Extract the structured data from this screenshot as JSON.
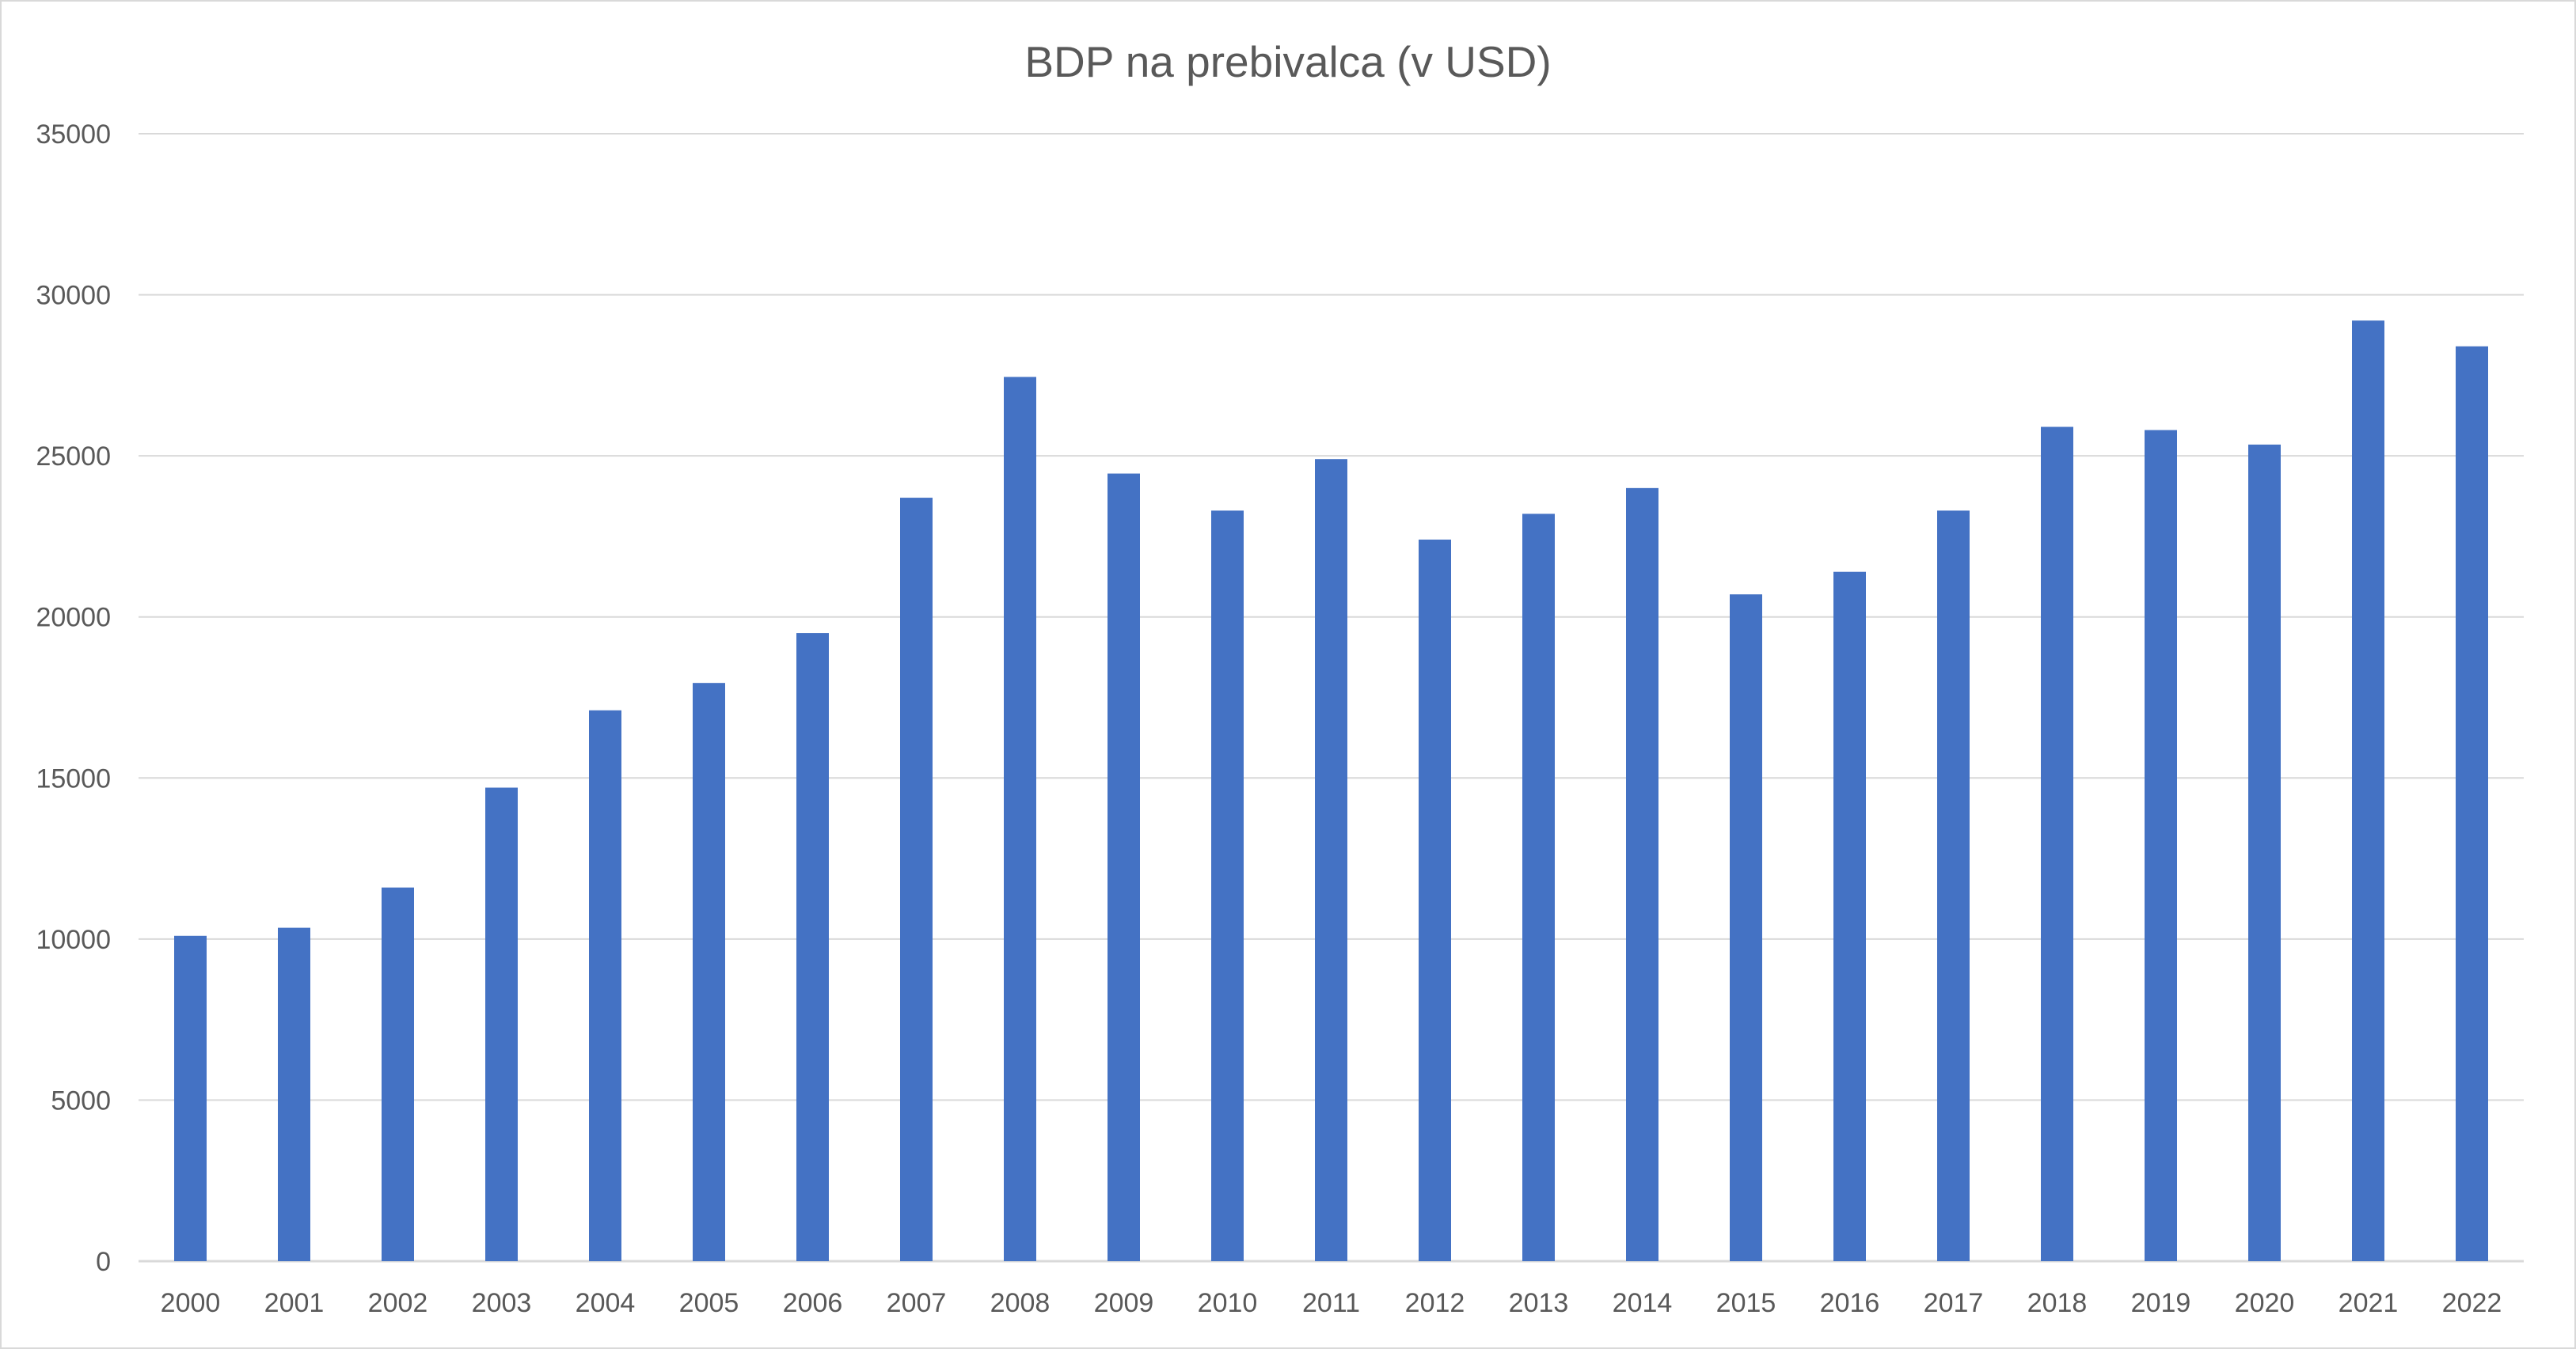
{
  "chart_data": {
    "type": "bar",
    "title": "BDP na prebivalca (v USD)",
    "xlabel": "",
    "ylabel": "",
    "categories": [
      "2000",
      "2001",
      "2002",
      "2003",
      "2004",
      "2005",
      "2006",
      "2007",
      "2008",
      "2009",
      "2010",
      "2011",
      "2012",
      "2013",
      "2014",
      "2015",
      "2016",
      "2017",
      "2018",
      "2019",
      "2020",
      "2021",
      "2022"
    ],
    "values": [
      10100,
      10350,
      11600,
      14700,
      17100,
      17950,
      19500,
      23700,
      27450,
      24450,
      23300,
      24900,
      22400,
      23200,
      24000,
      20700,
      21400,
      23300,
      25900,
      25800,
      25350,
      29200,
      28400
    ],
    "ylim": [
      0,
      35000
    ],
    "yticks": [
      "0",
      "5000",
      "10000",
      "15000",
      "20000",
      "25000",
      "30000",
      "35000"
    ],
    "grid": true,
    "legend": "none",
    "colors": {
      "bar": "#4472c4",
      "grid": "#d9d9d9",
      "text": "#595959"
    }
  }
}
